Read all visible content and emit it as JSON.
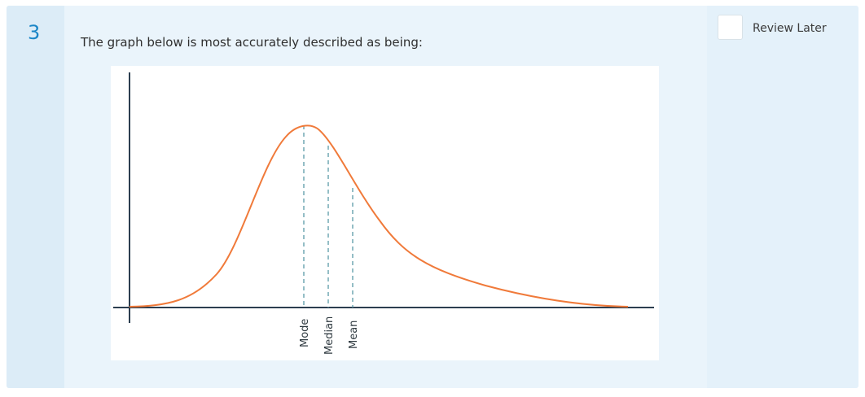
{
  "question": {
    "number": "3",
    "text": "The graph below is most accurately described as being:"
  },
  "review": {
    "label": "Review Later",
    "checked": false
  },
  "figure": {
    "markers": [
      "Mode",
      "Median",
      "Mean"
    ],
    "colors": {
      "curve": "#f07a3a",
      "axes": "#2c3e50",
      "markers": "#5b9aa8"
    }
  }
}
